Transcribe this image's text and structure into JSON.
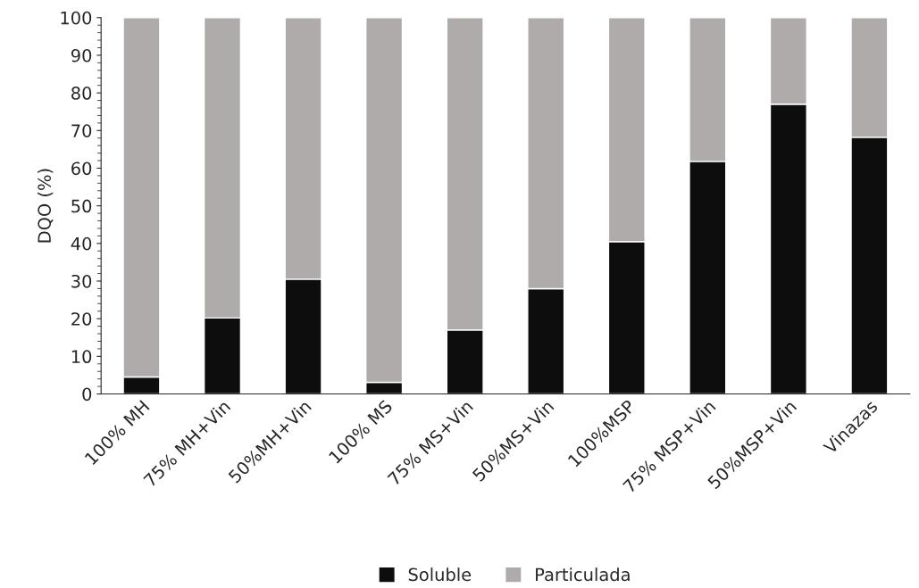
{
  "chart_data": {
    "type": "bar",
    "stacked": true,
    "ylabel": "DQO (%)",
    "categories": [
      "100% MH",
      "75% MH+Vin",
      "50%MH+Vin",
      "100% MS",
      "75% MS+Vin",
      "50%MS+Vin",
      "100%MSP",
      "75% MSP+Vin",
      "50%MSP+Vin",
      "Vinazas"
    ],
    "series": [
      {
        "name": "Soluble",
        "color": "#0d0d0d",
        "values": [
          4.5,
          20.2,
          30.5,
          3.1,
          17.0,
          28.0,
          40.5,
          61.8,
          77.0,
          68.2
        ]
      },
      {
        "name": "Particulada",
        "color": "#afabab",
        "values": [
          95.5,
          79.8,
          69.5,
          96.9,
          83.0,
          72.0,
          59.5,
          38.2,
          23.0,
          31.8
        ]
      }
    ],
    "ylim": [
      0,
      100
    ],
    "yticks": [
      0,
      10,
      20,
      30,
      40,
      50,
      60,
      70,
      80,
      90,
      100
    ],
    "grid": false,
    "legend": "bottom"
  }
}
